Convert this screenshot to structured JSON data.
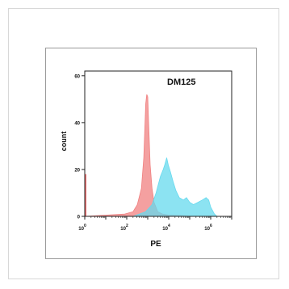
{
  "chart_data": {
    "type": "area",
    "title": "",
    "annotation": "DM125",
    "xlabel": "PE",
    "ylabel": "count",
    "x_scale": "log",
    "xlim": [
      1,
      10000000
    ],
    "ylim": [
      0,
      62
    ],
    "x_ticks": [
      {
        "value": 1,
        "base": "10",
        "exp": "0"
      },
      {
        "value": 100,
        "base": "10",
        "exp": "2"
      },
      {
        "value": 10000,
        "base": "10",
        "exp": "4"
      },
      {
        "value": 1000000,
        "base": "10",
        "exp": "6"
      }
    ],
    "y_ticks": [
      {
        "value": 0,
        "label": "0"
      },
      {
        "value": 20,
        "label": "20"
      },
      {
        "value": 40,
        "label": "40"
      },
      {
        "value": 60,
        "label": "60"
      }
    ],
    "grid": false,
    "series": [
      {
        "color": "#f08080",
        "points": [
          [
            1,
            0
          ],
          [
            10,
            0.5
          ],
          [
            80,
            1
          ],
          [
            200,
            2
          ],
          [
            320,
            5
          ],
          [
            500,
            12
          ],
          [
            650,
            25
          ],
          [
            800,
            48
          ],
          [
            900,
            52
          ],
          [
            1000,
            51
          ],
          [
            1100,
            40
          ],
          [
            1300,
            22
          ],
          [
            1600,
            12
          ],
          [
            2000,
            6
          ],
          [
            3000,
            2
          ],
          [
            5000,
            1
          ],
          [
            10000,
            0.5
          ],
          [
            40000,
            0.3
          ],
          [
            100000,
            0
          ]
        ]
      },
      {
        "color": "#66d9ee",
        "points": [
          [
            200,
            0
          ],
          [
            800,
            2
          ],
          [
            1600,
            5
          ],
          [
            2500,
            10
          ],
          [
            4000,
            17
          ],
          [
            5500,
            20
          ],
          [
            6500,
            22
          ],
          [
            8000,
            25
          ],
          [
            9500,
            22
          ],
          [
            12000,
            19
          ],
          [
            16000,
            15
          ],
          [
            22000,
            11
          ],
          [
            32000,
            8
          ],
          [
            50000,
            7
          ],
          [
            70000,
            8
          ],
          [
            100000,
            6
          ],
          [
            150000,
            5
          ],
          [
            250000,
            6
          ],
          [
            400000,
            7
          ],
          [
            600000,
            8
          ],
          [
            800000,
            7
          ],
          [
            1000000,
            4
          ],
          [
            1500000,
            1
          ],
          [
            2000000,
            0
          ]
        ]
      }
    ],
    "left_edge_marker": {
      "color": "#e87070",
      "y_max": 18
    }
  }
}
